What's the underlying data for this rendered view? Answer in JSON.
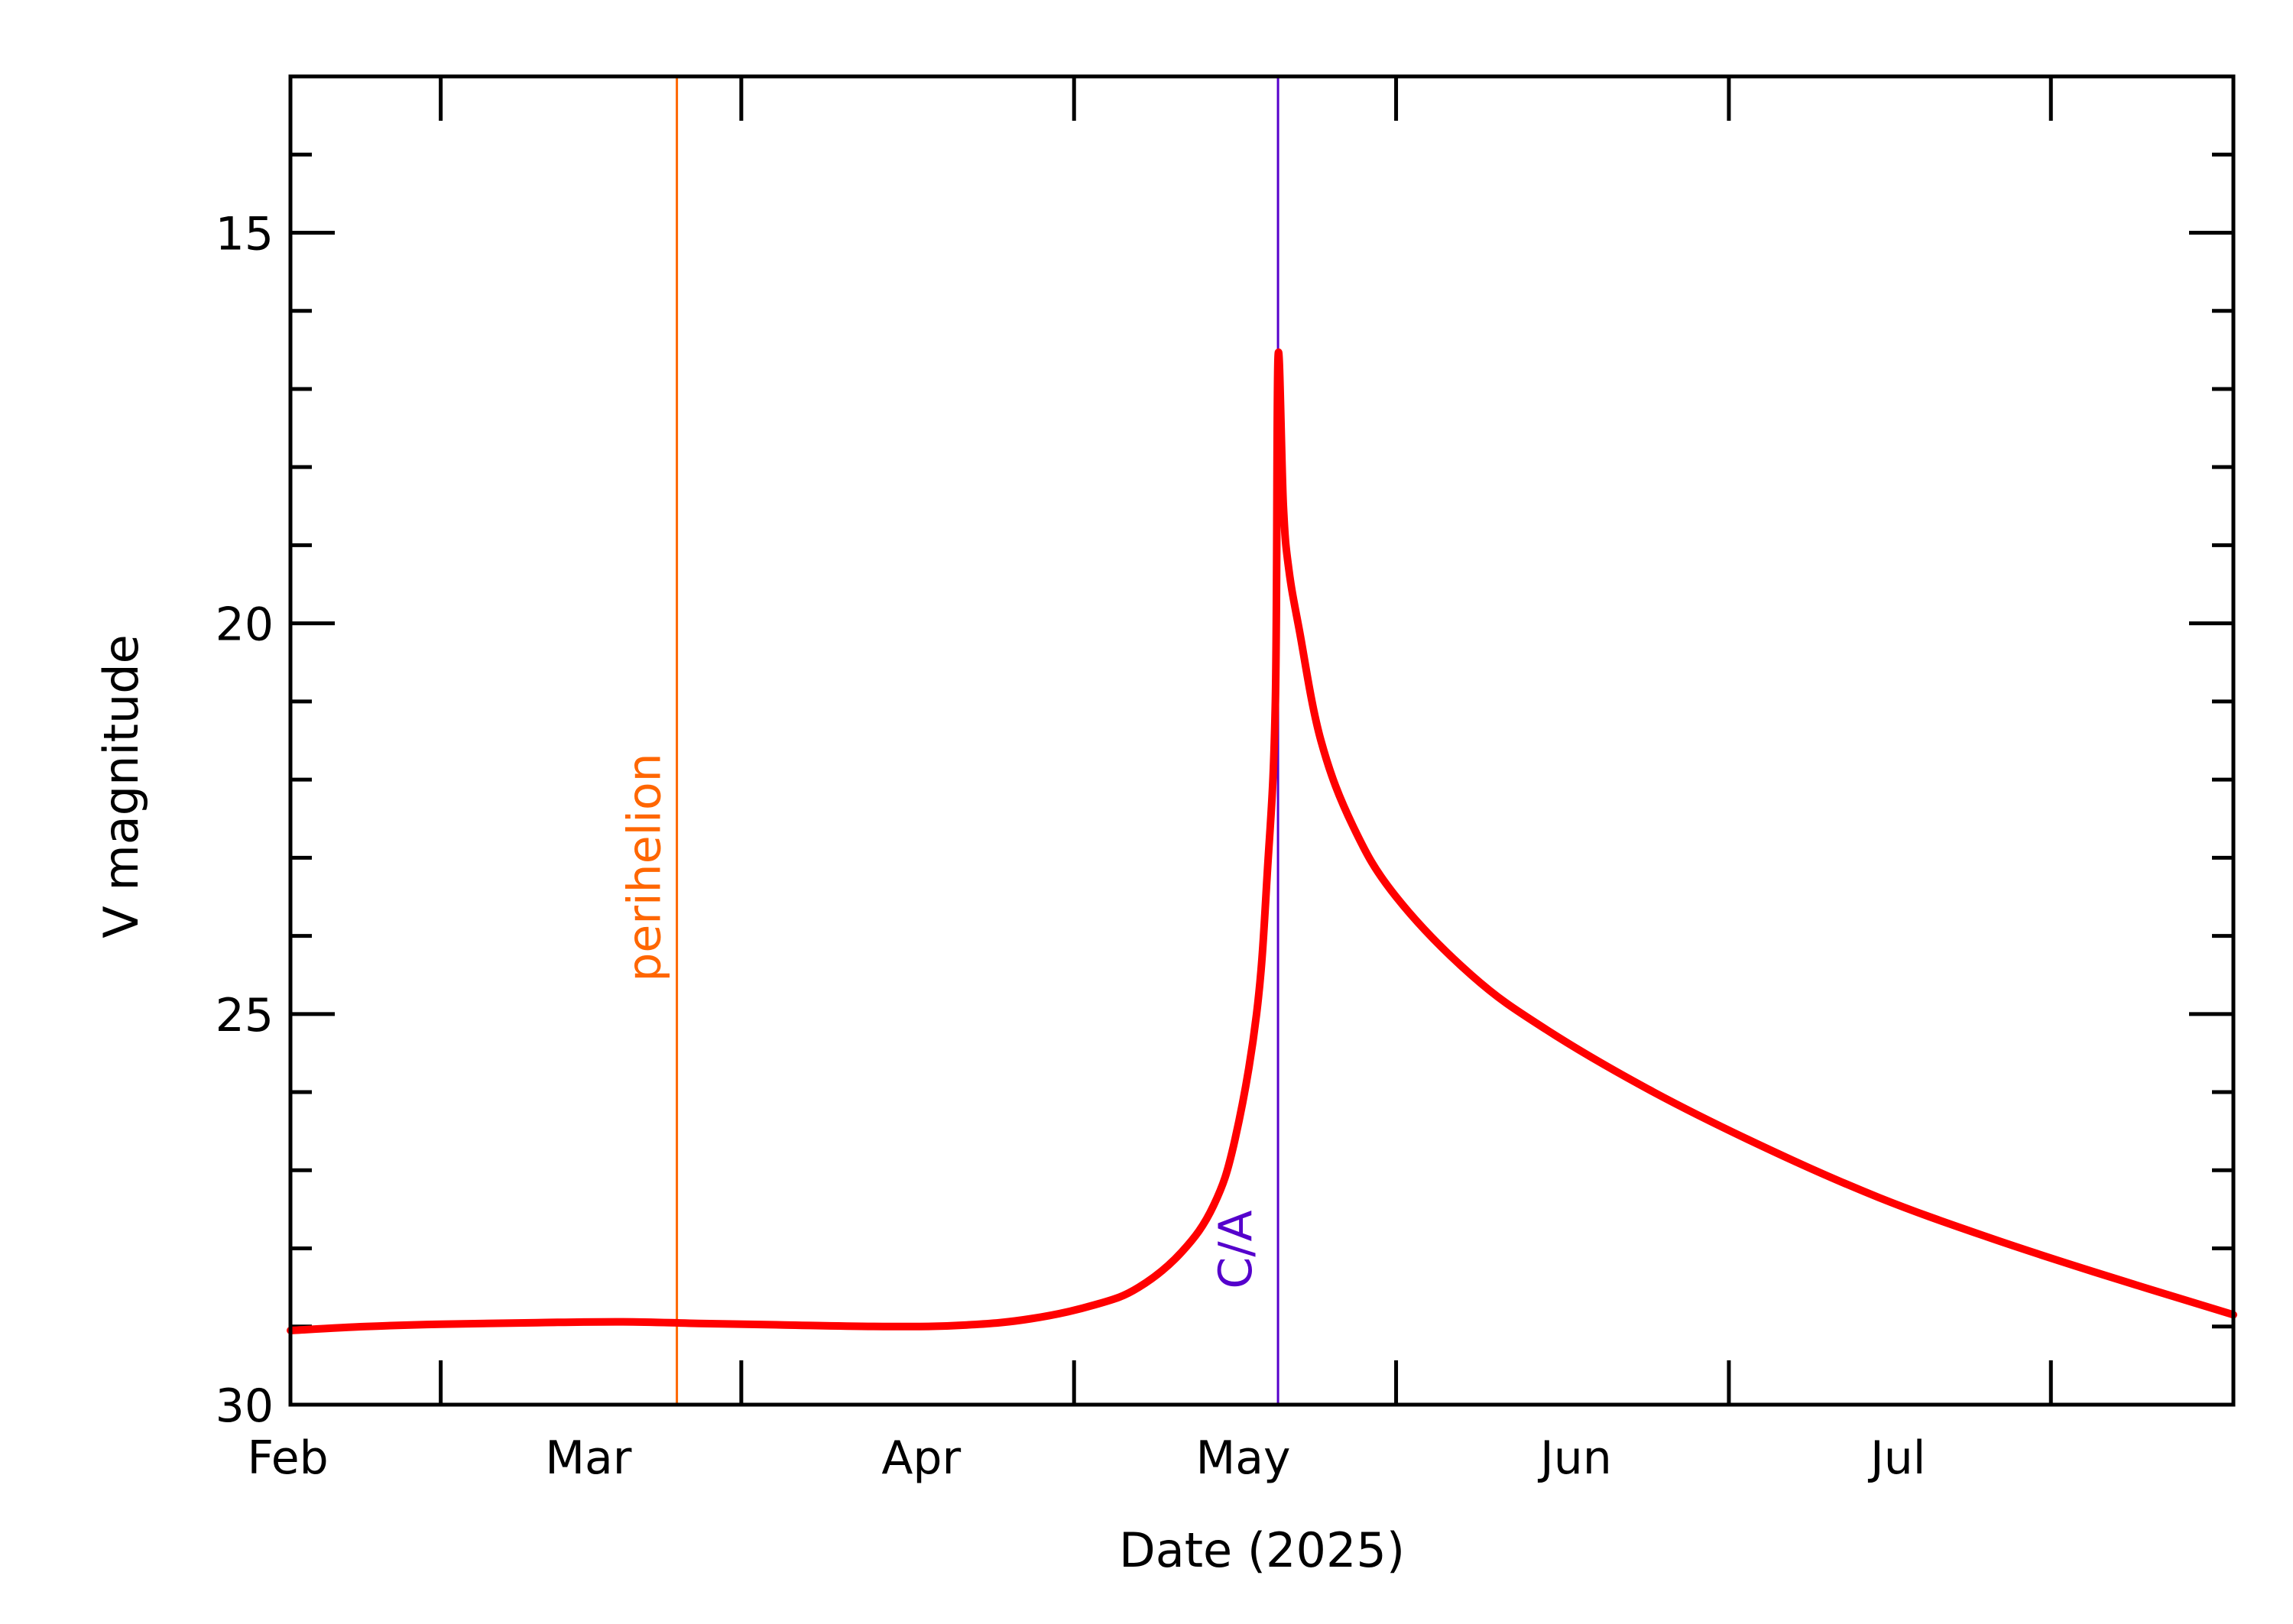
{
  "chart_data": {
    "type": "line",
    "title": "",
    "xlabel": "Date (2025)",
    "ylabel": "V magnitude",
    "x_axis": {
      "type": "date",
      "range": [
        "2025-01-18",
        "2025-07-18"
      ],
      "tick_dates": [
        "2025-02-01",
        "2025-03-01",
        "2025-04-01",
        "2025-05-01",
        "2025-06-01",
        "2025-07-01"
      ],
      "tick_labels": [
        "Feb",
        "Mar",
        "Apr",
        "May",
        "Jun",
        "Jul"
      ]
    },
    "y_axis": {
      "inverted": true,
      "ylim": [
        13,
        30
      ],
      "major_ticks": [
        15,
        20,
        25,
        30
      ],
      "tick_labels": [
        "15",
        "20",
        "25",
        "30"
      ],
      "minor_step": 1
    },
    "grid": false,
    "series": [
      {
        "color": "#ff0000",
        "points": [
          {
            "x": "2025-01-18",
            "y": 29.05
          },
          {
            "x": "2025-01-25",
            "y": 29.0
          },
          {
            "x": "2025-02-01",
            "y": 28.97
          },
          {
            "x": "2025-02-10",
            "y": 28.95
          },
          {
            "x": "2025-02-18",
            "y": 28.94
          },
          {
            "x": "2025-02-25",
            "y": 28.96
          },
          {
            "x": "2025-03-05",
            "y": 28.98
          },
          {
            "x": "2025-03-15",
            "y": 29.0
          },
          {
            "x": "2025-03-22",
            "y": 28.98
          },
          {
            "x": "2025-03-28",
            "y": 28.9
          },
          {
            "x": "2025-04-03",
            "y": 28.72
          },
          {
            "x": "2025-04-07",
            "y": 28.5
          },
          {
            "x": "2025-04-11",
            "y": 28.05
          },
          {
            "x": "2025-04-14",
            "y": 27.45
          },
          {
            "x": "2025-04-16",
            "y": 26.6
          },
          {
            "x": "2025-04-18",
            "y": 25.0
          },
          {
            "x": "2025-04-19",
            "y": 23.2
          },
          {
            "x": "2025-04-19T18:00",
            "y": 21.0
          },
          {
            "x": "2025-04-20",
            "y": 16.6
          },
          {
            "x": "2025-04-20T12:00",
            "y": 18.5
          },
          {
            "x": "2025-04-21",
            "y": 19.3
          },
          {
            "x": "2025-04-22",
            "y": 20.1
          },
          {
            "x": "2025-04-24",
            "y": 21.5
          },
          {
            "x": "2025-04-27",
            "y": 22.6
          },
          {
            "x": "2025-05-01",
            "y": 23.5
          },
          {
            "x": "2025-05-08",
            "y": 24.5
          },
          {
            "x": "2025-05-15",
            "y": 25.2
          },
          {
            "x": "2025-05-25",
            "y": 26.0
          },
          {
            "x": "2025-06-05",
            "y": 26.75
          },
          {
            "x": "2025-06-15",
            "y": 27.35
          },
          {
            "x": "2025-06-25",
            "y": 27.85
          },
          {
            "x": "2025-07-05",
            "y": 28.3
          },
          {
            "x": "2025-07-18",
            "y": 28.85
          }
        ]
      }
    ],
    "markers": [
      {
        "label": "perihelion",
        "x": "2025-02-23",
        "color": "#ff6600"
      },
      {
        "label": "C/A",
        "x": "2025-04-20",
        "color": "#5500cc"
      }
    ]
  }
}
